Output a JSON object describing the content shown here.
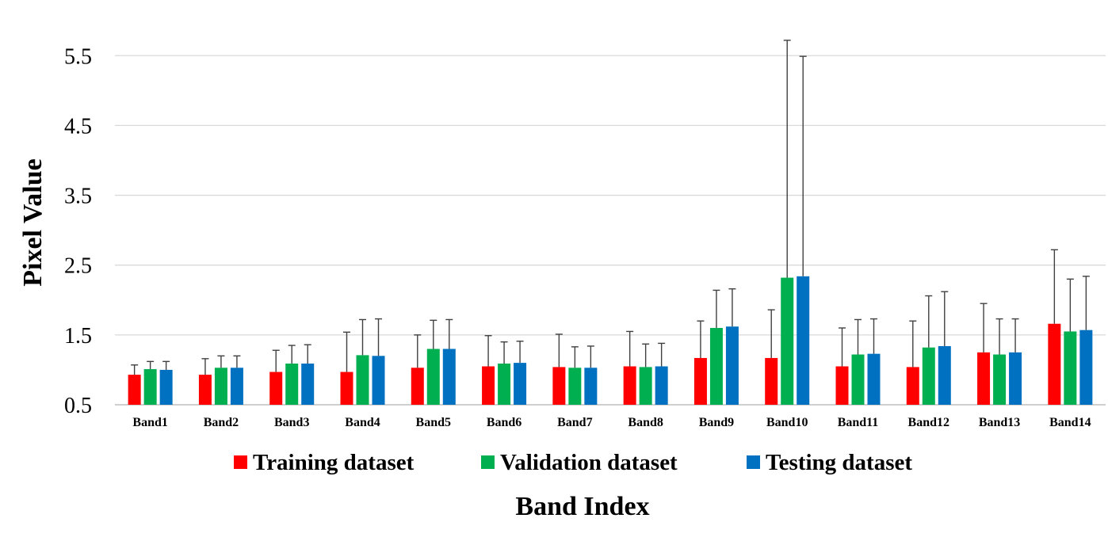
{
  "chart_data": {
    "type": "bar",
    "title": "",
    "xlabel": "Band Index",
    "ylabel": "Pixel Value",
    "ylim": [
      0.5,
      5.9
    ],
    "yticks": [
      "0.5",
      "1.5",
      "2.5",
      "3.5",
      "4.5",
      "5.5"
    ],
    "ytick_values": [
      0.5,
      1.5,
      2.5,
      3.5,
      4.5,
      5.5
    ],
    "grid": "horizontal",
    "legend_position": "bottom",
    "error_bars": "upper",
    "categories": [
      "Band1",
      "Band2",
      "Band3",
      "Band4",
      "Band5",
      "Band6",
      "Band7",
      "Band8",
      "Band9",
      "Band10",
      "Band11",
      "Band12",
      "Band13",
      "Band14"
    ],
    "series": [
      {
        "name": "Training dataset",
        "color": "#FF0000",
        "values": [
          0.93,
          0.93,
          0.97,
          0.97,
          1.03,
          1.05,
          1.04,
          1.05,
          1.17,
          1.17,
          1.05,
          1.04,
          1.25,
          1.66
        ],
        "error_upper": [
          1.07,
          1.16,
          1.28,
          1.54,
          1.5,
          1.49,
          1.51,
          1.55,
          1.7,
          1.86,
          1.6,
          1.7,
          1.95,
          2.72
        ]
      },
      {
        "name": "Validation dataset",
        "color": "#00B050",
        "values": [
          1.01,
          1.03,
          1.09,
          1.21,
          1.3,
          1.09,
          1.03,
          1.04,
          1.6,
          2.32,
          1.22,
          1.32,
          1.22,
          1.55
        ],
        "error_upper": [
          1.12,
          1.2,
          1.35,
          1.72,
          1.71,
          1.4,
          1.33,
          1.37,
          2.14,
          5.72,
          1.72,
          2.06,
          1.73,
          2.3
        ]
      },
      {
        "name": "Testing dataset",
        "color": "#0070C0",
        "values": [
          1.0,
          1.03,
          1.09,
          1.2,
          1.3,
          1.1,
          1.03,
          1.05,
          1.62,
          2.34,
          1.23,
          1.34,
          1.25,
          1.57
        ],
        "error_upper": [
          1.12,
          1.2,
          1.36,
          1.73,
          1.72,
          1.41,
          1.34,
          1.38,
          2.16,
          5.49,
          1.73,
          2.12,
          1.73,
          2.34
        ]
      }
    ]
  }
}
